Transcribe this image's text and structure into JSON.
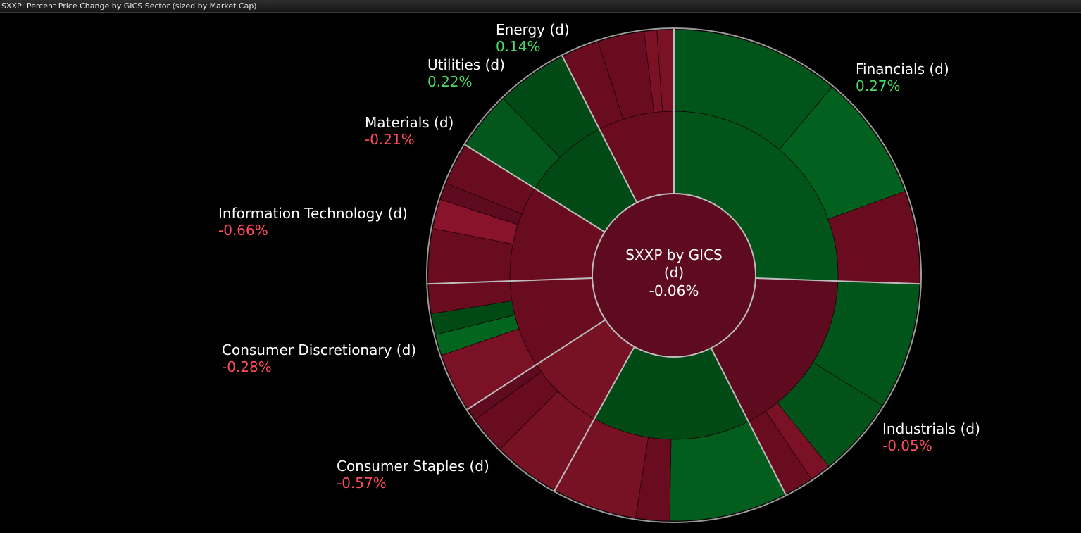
{
  "window": {
    "title": "SXXP: Percent Price Change by GICS Sector (sized by Market Cap)"
  },
  "colors": {
    "positive_text": "#4cd964",
    "negative_text": "#ff4d5e",
    "background": "#000000"
  },
  "chart_data": {
    "type": "sunburst",
    "title": "SXXP: Percent Price Change by GICS Sector (sized by Market Cap)",
    "center": {
      "line1": "SXXP by GICS",
      "line2": "(d)",
      "value": "-0.06%"
    },
    "sectors": [
      {
        "name": "Financials (d)",
        "change": "0.27%",
        "change_value": 0.27
      },
      {
        "name": "Industrials (d)",
        "change": "-0.05%",
        "change_value": -0.05
      },
      {
        "name": "Consumer Staples (d)",
        "change": "-0.57%",
        "change_value": -0.57
      },
      {
        "name": "Consumer Discretionary (d)",
        "change": "-0.28%",
        "change_value": -0.28
      },
      {
        "name": "Information Technology (d)",
        "change": "-0.66%",
        "change_value": -0.66
      },
      {
        "name": "Materials (d)",
        "change": "-0.21%",
        "change_value": -0.21
      },
      {
        "name": "Utilities (d)",
        "change": "0.22%",
        "change_value": 0.22
      },
      {
        "name": "Energy (d)",
        "change": "0.14%",
        "change_value": 0.14
      }
    ]
  }
}
